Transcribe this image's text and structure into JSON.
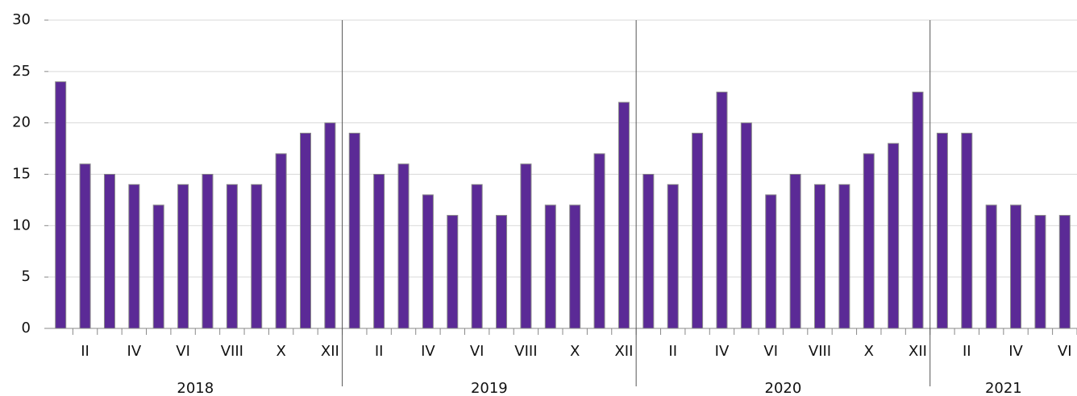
{
  "chart_data": {
    "type": "bar",
    "color": "#5b2a96",
    "edge": "#8a8a8a",
    "ylim": [
      0,
      30
    ],
    "yticks": [
      0,
      5,
      10,
      15,
      20,
      25,
      30
    ],
    "grid": true,
    "groups": [
      {
        "name": "2018",
        "categories": [
          null,
          "II",
          null,
          "IV",
          null,
          "VI",
          null,
          "VIII",
          null,
          "X",
          null,
          "XII"
        ],
        "values": [
          24,
          16,
          15,
          14,
          12,
          14,
          15,
          14,
          14,
          17,
          19,
          20
        ]
      },
      {
        "name": "2019",
        "categories": [
          null,
          "II",
          null,
          "IV",
          null,
          "VI",
          null,
          "VIII",
          null,
          "X",
          null,
          "XII"
        ],
        "values": [
          19,
          15,
          16,
          13,
          11,
          14,
          11,
          16,
          12,
          12,
          17,
          22
        ]
      },
      {
        "name": "2020",
        "categories": [
          null,
          "II",
          null,
          "IV",
          null,
          "VI",
          null,
          "VIII",
          null,
          "X",
          null,
          "XII"
        ],
        "values": [
          15,
          14,
          19,
          23,
          20,
          13,
          15,
          14,
          14,
          17,
          18,
          23
        ]
      },
      {
        "name": "2021",
        "categories": [
          null,
          "II",
          null,
          "IV",
          null,
          "VI"
        ],
        "values": [
          19,
          19,
          12,
          12,
          11,
          11
        ]
      }
    ]
  }
}
